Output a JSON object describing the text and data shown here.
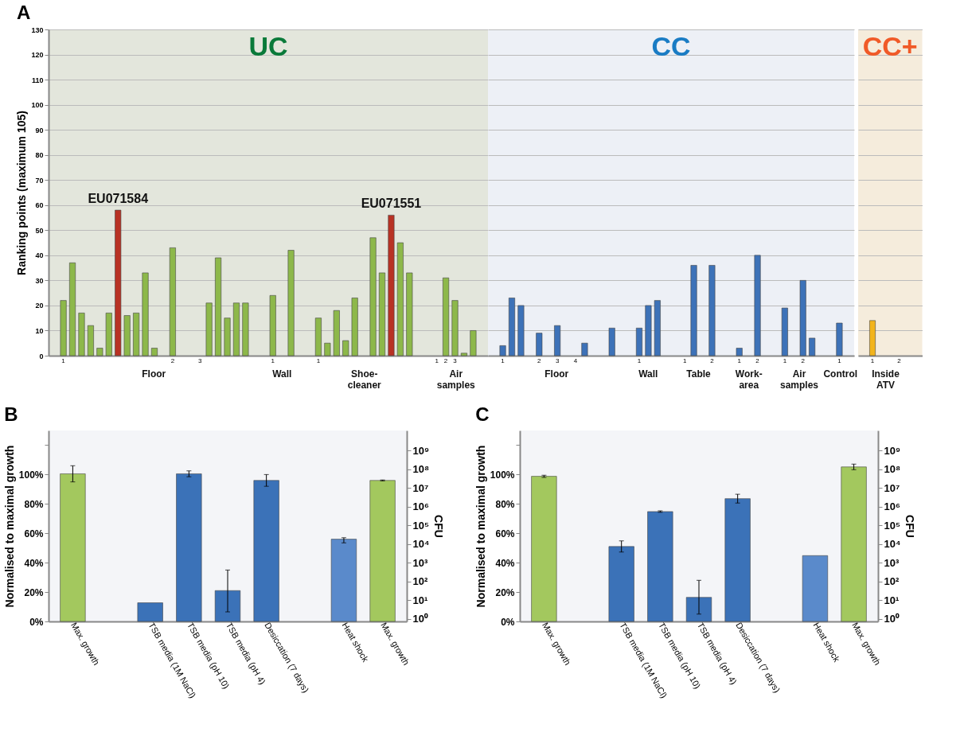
{
  "chart_data": [
    {
      "type": "bar",
      "title": "A",
      "subtitle": "UC",
      "ylabel": "Ranking points (maximum 105)",
      "categories": [
        null,
        "1",
        null,
        null,
        null,
        null,
        null,
        null,
        null,
        null,
        null,
        null,
        null,
        "2",
        null,
        null,
        "3",
        null,
        null,
        null,
        null,
        null,
        null,
        null,
        "1",
        null,
        null,
        null,
        null,
        "1",
        null,
        null,
        null,
        null,
        null,
        null,
        null,
        null,
        null,
        null,
        null,
        null,
        "1",
        "2",
        "3",
        null,
        null,
        null
      ],
      "values": [
        null,
        22,
        37,
        17,
        12,
        3,
        17,
        58,
        16,
        17,
        33,
        3,
        null,
        43,
        null,
        null,
        null,
        21,
        39,
        15,
        21,
        21,
        null,
        null,
        24,
        null,
        42,
        null,
        null,
        15,
        5,
        18,
        6,
        23,
        null,
        47,
        33,
        56,
        45,
        33,
        null,
        null,
        null,
        31,
        22,
        1,
        10,
        null
      ],
      "colors": [
        null,
        "#8db84a",
        "#8db84a",
        "#8db84a",
        "#8db84a",
        "#8db84a",
        "#8db84a",
        "#b83224",
        "#8db84a",
        "#8db84a",
        "#8db84a",
        "#8db84a",
        null,
        "#8db84a",
        null,
        null,
        null,
        "#8db84a",
        "#8db84a",
        "#8db84a",
        "#8db84a",
        "#8db84a",
        null,
        null,
        "#8db84a",
        null,
        "#8db84a",
        null,
        null,
        "#8db84a",
        "#8db84a",
        "#8db84a",
        "#8db84a",
        "#8db84a",
        null,
        "#8db84a",
        "#8db84a",
        "#b83224",
        "#8db84a",
        "#8db84a",
        null,
        null,
        null,
        "#8db84a",
        "#8db84a",
        "#8db84a",
        "#8db84a",
        null
      ],
      "ylim": [
        0,
        130
      ],
      "yticks": [
        0,
        10,
        20,
        30,
        40,
        50,
        60,
        70,
        80,
        90,
        100,
        110,
        120,
        130
      ],
      "grid": "y",
      "annotations": [
        {
          "text": "EU071584",
          "y": 58
        },
        {
          "text": "EU071551",
          "y": 56
        },
        "Floor",
        "Wall",
        "Shoe-\ncleaner",
        "Air\nsamples"
      ]
    },
    {
      "type": "bar",
      "subtitle": "CC",
      "categories": [
        null,
        "1",
        null,
        null,
        null,
        "2",
        null,
        "3",
        null,
        "4",
        null,
        null,
        null,
        null,
        null,
        null,
        "1",
        null,
        null,
        null,
        null,
        "1",
        null,
        null,
        "2",
        null,
        null,
        "1",
        null,
        "2",
        null,
        null,
        "1",
        null,
        "2",
        null,
        null,
        null,
        "1",
        null
      ],
      "values": [
        null,
        4,
        23,
        20,
        null,
        9,
        null,
        12,
        null,
        null,
        5,
        null,
        null,
        11,
        null,
        null,
        11,
        20,
        22,
        null,
        null,
        null,
        36,
        null,
        36,
        null,
        null,
        3,
        null,
        40,
        null,
        null,
        19,
        null,
        30,
        7,
        null,
        null,
        13,
        null
      ],
      "colors": [
        null,
        "#3d72b8",
        "#3d72b8",
        "#3d72b8",
        null,
        "#3d72b8",
        null,
        "#3d72b8",
        null,
        null,
        "#3d72b8",
        null,
        null,
        "#3d72b8",
        null,
        null,
        "#3d72b8",
        "#3d72b8",
        "#3d72b8",
        null,
        null,
        null,
        "#3d72b8",
        null,
        "#3d72b8",
        null,
        null,
        "#3d72b8",
        null,
        "#3d72b8",
        null,
        null,
        "#3d72b8",
        null,
        "#3d72b8",
        "#3d72b8",
        null,
        null,
        "#3d72b8",
        null
      ],
      "ylim": [
        0,
        130
      ],
      "yticks": [
        0,
        10,
        20,
        30,
        40,
        50,
        60,
        70,
        80,
        90,
        100,
        110,
        120,
        130
      ],
      "grid": "y",
      "tick_labels": "x",
      "annotations": [
        "Floor",
        "Wall",
        "Table",
        "Work-\narea",
        "Air\nsamples",
        "Control"
      ]
    },
    {
      "type": "bar",
      "subtitle": "CC+",
      "categories": [
        null,
        "1",
        null,
        null,
        "2",
        null,
        null
      ],
      "values": [
        null,
        14,
        null,
        null,
        null,
        null,
        null
      ],
      "colors": [
        null,
        "#f2b41c",
        null,
        null,
        null,
        null,
        null
      ],
      "ylim": [
        0,
        130
      ],
      "yticks": [
        0,
        10,
        20,
        30,
        40,
        50,
        60,
        70,
        80,
        90,
        100,
        110,
        120,
        130
      ],
      "grid": "y",
      "tick_labels": "x",
      "annotations": [
        "Inside\nATV"
      ]
    },
    {
      "type": "bar",
      "title": "B",
      "ylabel": "Normalised to maximal growth",
      "y2label": "CFU",
      "categories": [
        "Max. growth",
        null,
        "TSB media (1M NaCl)",
        "TSB media (pH 10)",
        "TSB media (pH 4)",
        "Desiccation (7 days)",
        null,
        "Heat shock",
        "Max. growth"
      ],
      "values": [
        100.5,
        null,
        12.7,
        100.5,
        21,
        96,
        null,
        56,
        96
      ],
      "errors": [
        5.5,
        null,
        null,
        2,
        [
          6.5,
          35
        ],
        [
          92,
          100
        ],
        null,
        [
          53.5,
          57
        ],
        0.3
      ],
      "colors": [
        "#a3c85e",
        null,
        "#3b72b8",
        "#3b72b8",
        "#3b72b8",
        "#3b72b8",
        null,
        "#5a8acb",
        "#a3c85e"
      ],
      "ylim": [
        0,
        130
      ],
      "yticks": [
        {
          "value": 0,
          "label": "0%"
        },
        {
          "value": 20,
          "label": "20%"
        },
        {
          "value": 40,
          "label": "40%"
        },
        {
          "value": 60,
          "label": "60%"
        },
        {
          "value": 80,
          "label": "80%"
        },
        {
          "value": 100,
          "label": "100%"
        },
        {
          "value": 120,
          "label": null
        }
      ],
      "log": "y2",
      "y2lim": [
        0.73,
        12000000000
      ],
      "y2ticks": [
        {
          "value": 1,
          "label": "10⁰"
        },
        {
          "value": 10,
          "label": "10¹"
        },
        {
          "value": 100,
          "label": "10²"
        },
        {
          "value": 1000,
          "label": "10³"
        },
        {
          "value": 10000,
          "label": "10⁴"
        },
        {
          "value": 100000,
          "label": "10⁵"
        },
        {
          "value": 1000000,
          "label": "10⁶"
        },
        {
          "value": 10000000,
          "label": "10⁷"
        },
        {
          "value": 100000000,
          "label": "10⁸"
        },
        {
          "value": 1000000000,
          "label": "10⁹"
        }
      ]
    },
    {
      "type": "bar",
      "title": "C",
      "ylabel": "Normalised to maximal growth",
      "y2label": "CFU",
      "categories": [
        "Max. growth",
        null,
        "TSB media (1M NaCl)",
        "TSB media (pH 10)",
        "TSB media (pH 4)",
        "Desiccation (7 days)",
        null,
        "Heat shock",
        "Max. growth"
      ],
      "values": [
        98.8,
        null,
        51,
        74.8,
        16.4,
        83.6,
        null,
        44.8,
        105.2
      ],
      "errors": [
        0.7,
        null,
        3.8,
        0.5,
        [
          5,
          28
        ],
        3,
        null,
        null,
        1.9
      ],
      "colors": [
        "#a3c85e",
        null,
        "#3b72b8",
        "#3b72b8",
        "#3b72b8",
        "#3b72b8",
        null,
        "#5a8acb",
        "#a3c85e"
      ],
      "ylim": [
        0,
        130
      ],
      "yticks": [
        {
          "value": 0,
          "label": "0%"
        },
        {
          "value": 20,
          "label": "20%"
        },
        {
          "value": 40,
          "label": "40%"
        },
        {
          "value": 60,
          "label": "60%"
        },
        {
          "value": 80,
          "label": "80%"
        },
        {
          "value": 100,
          "label": "100%"
        },
        {
          "value": 120,
          "label": null
        }
      ],
      "log": "y2",
      "y2lim": [
        0.73,
        12000000000
      ],
      "y2ticks": [
        {
          "value": 1,
          "label": "10⁰"
        },
        {
          "value": 10,
          "label": "10¹"
        },
        {
          "value": 100,
          "label": "10²"
        },
        {
          "value": 1000,
          "label": "10³"
        },
        {
          "value": 10000,
          "label": "10⁴"
        },
        {
          "value": 100000,
          "label": "10⁵"
        },
        {
          "value": 1000000,
          "label": "10⁶"
        },
        {
          "value": 10000000,
          "label": "10⁷"
        },
        {
          "value": 100000000,
          "label": "10⁸"
        },
        {
          "value": 1000000000,
          "label": "10⁹"
        }
      ]
    }
  ]
}
